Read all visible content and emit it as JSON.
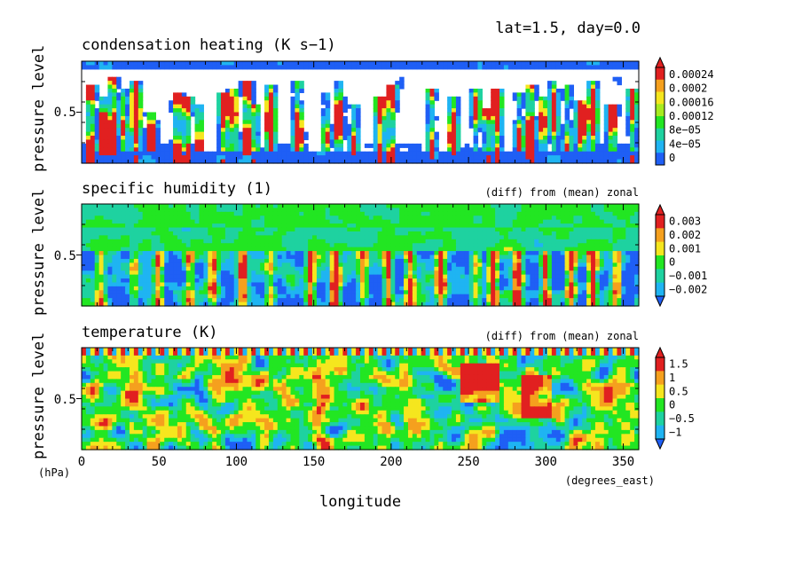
{
  "header": {
    "label": "lat=1.5, day=0.0"
  },
  "axes": {
    "xlabel": "longitude",
    "xunit": "(degrees_east)",
    "yunit": "(hPa)",
    "xticks": [
      0,
      50,
      100,
      150,
      200,
      250,
      300,
      350
    ],
    "xlim": [
      0,
      360
    ]
  },
  "colors": {
    "levels": [
      "#1f5ff5",
      "#1fb4f2",
      "#1ed2a0",
      "#22e622",
      "#a7eb1f",
      "#f5e61e",
      "#f5a01e",
      "#e12020"
    ]
  },
  "chart_data": [
    {
      "type": "heatmap",
      "title": "condensation heating (K s−1)",
      "subtitle": "",
      "ylabel": "pressure level",
      "yticks": [
        "0.5"
      ],
      "colorbar": [
        "0.00024",
        "0.0002",
        "0.00016",
        "0.00012",
        "8e−05",
        "4e−05",
        "0"
      ],
      "xlim": [
        0,
        360
      ],
      "ylim": [
        1.0,
        0.0
      ]
    },
    {
      "type": "heatmap",
      "title": "specific humidity (1)",
      "subtitle": "(diff) from (mean) zonal",
      "ylabel": "pressure level",
      "yticks": [
        "0.5"
      ],
      "colorbar": [
        "0.003",
        "0.002",
        "0.001",
        "0",
        "−0.001",
        "−0.002"
      ],
      "xlim": [
        0,
        360
      ],
      "ylim": [
        1.0,
        0.0
      ]
    },
    {
      "type": "heatmap",
      "title": "temperature (K)",
      "subtitle": "(diff) from (mean) zonal",
      "ylabel": "pressure level",
      "yticks": [
        "0.5"
      ],
      "colorbar": [
        "1.5",
        "1",
        "0.5",
        "0",
        "−0.5",
        "−1"
      ],
      "xlim": [
        0,
        360
      ],
      "ylim": [
        1.0,
        0.0
      ]
    }
  ]
}
